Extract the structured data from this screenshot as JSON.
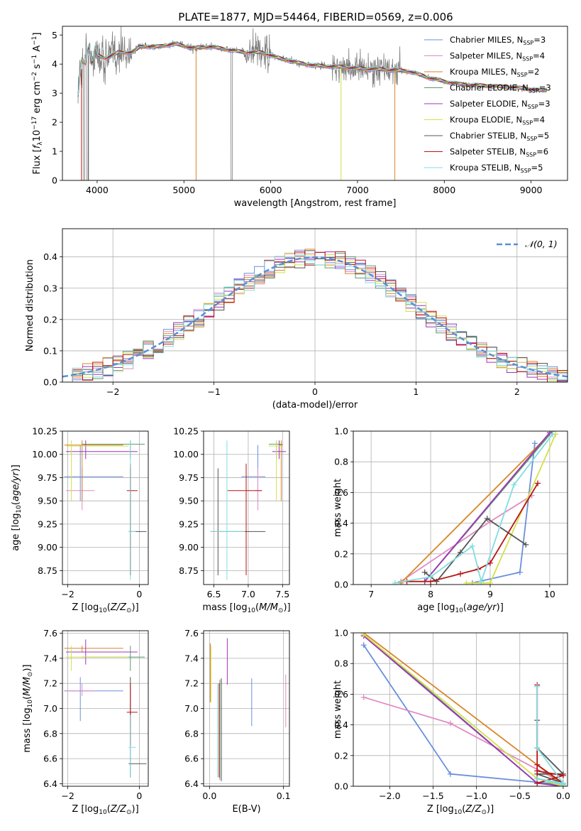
{
  "figure_title": "PLATE=1877, MJD=54464, FIBERID=0569, z=0.006",
  "colors": {
    "Chabrier MILES": "#6a8fdc",
    "Salpeter MILES": "#e28bc3",
    "Kroupa MILES": "#d9862a",
    "Chabrier ELODIE": "#5b9a70",
    "Salpeter ELODIE": "#a035b8",
    "Kroupa ELODIE": "#d4e04a",
    "Chabrier STELIB": "#555555",
    "Salpeter STELIB": "#b81414",
    "Kroupa STELIB": "#80dde0",
    "data": "#7f7f7f",
    "normal": "#5b8fd6"
  },
  "chart_data": [
    {
      "id": "spectrum",
      "type": "line",
      "xlabel": "wavelength [Angstrom, rest frame]",
      "ylabel": "Flux [f_λ 10^-17 erg cm^-2 s^-1 A^-1]",
      "xlim": [
        3600,
        9420
      ],
      "ylim": [
        0,
        5.3
      ],
      "xticks": [
        4000,
        5000,
        6000,
        7000,
        8000,
        9000
      ],
      "yticks": [
        0,
        1,
        2,
        3,
        4,
        5
      ],
      "legend_position": "upper right",
      "legend": [
        {
          "name": "Chabrier MILES",
          "nssp": "3"
        },
        {
          "name": "Salpeter MILES",
          "nssp": "4"
        },
        {
          "name": "Kroupa MILES",
          "nssp": "2"
        },
        {
          "name": "Chabrier ELODIE",
          "nssp": "3"
        },
        {
          "name": "Salpeter ELODIE",
          "nssp": "3"
        },
        {
          "name": "Kroupa ELODIE",
          "nssp": "4"
        },
        {
          "name": "Chabrier STELIB",
          "nssp": "5"
        },
        {
          "name": "Salpeter STELIB",
          "nssp": "6"
        },
        {
          "name": "Kroupa STELIB",
          "nssp": "5"
        }
      ],
      "continuum": [
        [
          3780,
          3.2
        ],
        [
          3850,
          4.3
        ],
        [
          4000,
          4.3
        ],
        [
          4100,
          4.2
        ],
        [
          4250,
          4.4
        ],
        [
          4400,
          4.4
        ],
        [
          4500,
          4.6
        ],
        [
          4700,
          4.6
        ],
        [
          4900,
          4.7
        ],
        [
          5100,
          4.55
        ],
        [
          5300,
          4.6
        ],
        [
          5500,
          4.5
        ],
        [
          5700,
          4.4
        ],
        [
          5900,
          4.4
        ],
        [
          6100,
          4.2
        ],
        [
          6300,
          4.05
        ],
        [
          6500,
          3.95
        ],
        [
          6800,
          3.9
        ],
        [
          7000,
          3.85
        ],
        [
          7400,
          3.8
        ],
        [
          7600,
          3.75
        ],
        [
          7800,
          3.55
        ],
        [
          8000,
          3.4
        ],
        [
          8200,
          3.3
        ],
        [
          8500,
          3.25
        ],
        [
          8800,
          3.2
        ],
        [
          9100,
          3.1
        ]
      ]
    },
    {
      "id": "residuals",
      "type": "bar",
      "xlabel": "(data-model)/error",
      "ylabel": "Normed distribution",
      "xlim": [
        -2.5,
        2.5
      ],
      "ylim": [
        0,
        0.49
      ],
      "xticks": [
        -2,
        -1,
        0,
        1,
        2
      ],
      "yticks": [
        0.0,
        0.1,
        0.2,
        0.3,
        0.4
      ],
      "legend": "𝒩(0, 1)",
      "bin_width": 0.1
    },
    {
      "id": "age-vs-Z",
      "type": "scatter",
      "xlabel": "Z [log10(Z/Z⊙)]",
      "ylabel": "age [log10(age/yr)]",
      "xlim": [
        -2.15,
        0.25
      ],
      "ylim": [
        8.6,
        10.25
      ],
      "xticks": [
        -2,
        0
      ],
      "yticks": [
        8.75,
        9.0,
        9.25,
        9.5,
        9.75,
        10.0,
        10.25
      ]
    },
    {
      "id": "age-vs-mass",
      "type": "scatter",
      "xlabel": "mass [log10(M/M⊙)]",
      "xlim": [
        6.35,
        7.6
      ],
      "ylim": [
        8.6,
        10.25
      ],
      "xticks": [
        6.5,
        7.0,
        7.5
      ],
      "yticks": [
        8.75,
        9.0,
        9.25,
        9.5,
        9.75,
        10.0,
        10.25
      ]
    },
    {
      "id": "mass-weight-vs-age",
      "type": "line",
      "xlabel": "age [log10(age/yr)]",
      "ylabel": "mass weight",
      "xlim": [
        6.7,
        10.3
      ],
      "ylim": [
        0,
        1
      ],
      "xticks": [
        7,
        8,
        9,
        10
      ],
      "yticks": [
        0.0,
        0.2,
        0.4,
        0.6,
        0.8,
        1.0
      ],
      "series": [
        {
          "name": "Chabrier MILES",
          "points": [
            [
              8.7,
              0.01
            ],
            [
              9.5,
              0.08
            ],
            [
              9.75,
              0.92
            ]
          ]
        },
        {
          "name": "Salpeter MILES",
          "points": [
            [
              7.5,
              0.02
            ],
            [
              9.0,
              0.41
            ],
            [
              9.7,
              0.58
            ]
          ]
        },
        {
          "name": "Kroupa MILES",
          "points": [
            [
              7.5,
              0.01
            ],
            [
              10.05,
              1.0
            ]
          ]
        },
        {
          "name": "Chabrier ELODIE",
          "points": [
            [
              7.9,
              0.02
            ],
            [
              10.05,
              1.0
            ]
          ]
        },
        {
          "name": "Salpeter ELODIE",
          "points": [
            [
              7.9,
              0.02
            ],
            [
              10.0,
              0.99
            ]
          ]
        },
        {
          "name": "Kroupa ELODIE",
          "points": [
            [
              8.6,
              0.01
            ],
            [
              9.0,
              0.01
            ],
            [
              10.1,
              0.98
            ]
          ]
        },
        {
          "name": "Chabrier STELIB",
          "points": [
            [
              7.9,
              0.08
            ],
            [
              8.1,
              0.02
            ],
            [
              8.5,
              0.21
            ],
            [
              8.95,
              0.43
            ],
            [
              9.6,
              0.26
            ]
          ]
        },
        {
          "name": "Salpeter STELIB",
          "points": [
            [
              7.6,
              0.02
            ],
            [
              8.0,
              0.02
            ],
            [
              8.5,
              0.07
            ],
            [
              8.8,
              0.1
            ],
            [
              9.0,
              0.14
            ],
            [
              9.8,
              0.66
            ]
          ]
        },
        {
          "name": "Kroupa STELIB",
          "points": [
            [
              7.4,
              0.01
            ],
            [
              8.0,
              0.05
            ],
            [
              8.7,
              0.25
            ],
            [
              8.85,
              0.02
            ],
            [
              9.4,
              0.65
            ],
            [
              10.05,
              0.98
            ]
          ]
        }
      ]
    },
    {
      "id": "mass-vs-Z",
      "type": "scatter",
      "xlabel": "Z [log10(Z/Z⊙)]",
      "ylabel": "mass [log10(M/M⊙)]",
      "xlim": [
        -2.15,
        0.25
      ],
      "ylim": [
        6.38,
        7.62
      ],
      "xticks": [
        -2,
        0
      ],
      "yticks": [
        6.4,
        6.6,
        6.8,
        7.0,
        7.2,
        7.4,
        7.6
      ]
    },
    {
      "id": "mass-vs-ebv",
      "type": "scatter",
      "xlabel": "E(B-V)",
      "xlim": [
        -0.008,
        0.108
      ],
      "ylim": [
        6.38,
        7.62
      ],
      "xticks": [
        0.0,
        0.1
      ],
      "yticks": [
        6.4,
        6.6,
        6.8,
        7.0,
        7.2,
        7.4,
        7.6
      ],
      "points": [
        {
          "name": "Chabrier MILES",
          "x": 0.057,
          "ylo": 6.86,
          "yhi": 7.24
        },
        {
          "name": "Salpeter MILES",
          "x": 0.103,
          "ylo": 6.85,
          "yhi": 7.27
        },
        {
          "name": "Kroupa MILES",
          "x": 0.001,
          "ylo": 7.05,
          "yhi": 7.52
        },
        {
          "name": "Chabrier ELODIE",
          "x": 0.014,
          "ylo": 6.43,
          "yhi": 7.23
        },
        {
          "name": "Salpeter ELODIE",
          "x": 0.024,
          "ylo": 7.19,
          "yhi": 7.56
        },
        {
          "name": "Kroupa ELODIE",
          "x": 0.002,
          "ylo": 7.05,
          "yhi": 7.5
        },
        {
          "name": "Chabrier STELIB",
          "x": 0.016,
          "ylo": 6.42,
          "yhi": 7.24
        },
        {
          "name": "Salpeter STELIB",
          "x": 0.013,
          "ylo": 6.45,
          "yhi": 7.2
        },
        {
          "name": "Kroupa STELIB",
          "x": 0.011,
          "ylo": 6.45,
          "yhi": 7.2
        }
      ]
    },
    {
      "id": "mass-weight-vs-Z",
      "type": "line",
      "xlabel": "Z [log10(Z/Z⊙)]",
      "ylabel": "mass weight",
      "xlim": [
        -2.42,
        0.05
      ],
      "ylim": [
        0,
        1
      ],
      "xticks": [
        -2.0,
        -1.5,
        -1.0,
        -0.5,
        0.0
      ],
      "yticks": [
        0.0,
        0.2,
        0.4,
        0.6,
        0.8,
        1.0
      ],
      "series": [
        {
          "name": "Chabrier MILES",
          "points": [
            [
              -2.3,
              0.92
            ],
            [
              -1.3,
              0.08
            ],
            [
              0.0,
              0.01
            ]
          ]
        },
        {
          "name": "Salpeter MILES",
          "points": [
            [
              -2.3,
              0.58
            ],
            [
              -1.3,
              0.41
            ],
            [
              0.0,
              0.02
            ]
          ]
        },
        {
          "name": "Kroupa MILES",
          "points": [
            [
              -2.3,
              1.0
            ],
            [
              0.0,
              0.01
            ]
          ]
        },
        {
          "name": "Chabrier ELODIE",
          "points": [
            [
              -2.3,
              0.99
            ],
            [
              -0.3,
              0.02
            ],
            [
              0.0,
              0.01
            ]
          ]
        },
        {
          "name": "Salpeter ELODIE",
          "points": [
            [
              -2.3,
              0.98
            ],
            [
              -0.3,
              0.02
            ],
            [
              0.0,
              0.0
            ]
          ]
        },
        {
          "name": "Kroupa ELODIE",
          "points": [
            [
              -2.3,
              0.99
            ],
            [
              -0.3,
              0.05
            ],
            [
              0.0,
              0.0
            ]
          ]
        },
        {
          "name": "Chabrier STELIB",
          "points": [
            [
              -0.3,
              0.43
            ],
            [
              -0.3,
              0.25
            ],
            [
              0.0,
              0.08
            ],
            [
              -0.3,
              0.08
            ],
            [
              0.0,
              0.02
            ]
          ]
        },
        {
          "name": "Salpeter STELIB",
          "points": [
            [
              -0.3,
              0.66
            ],
            [
              -0.3,
              0.02
            ],
            [
              0.0,
              0.07
            ],
            [
              -0.3,
              0.1
            ],
            [
              -0.3,
              0.14
            ],
            [
              0.0,
              0.02
            ]
          ]
        },
        {
          "name": "Kroupa STELIB",
          "points": [
            [
              -0.3,
              0.65
            ],
            [
              -0.3,
              0.25
            ],
            [
              0.0,
              0.02
            ],
            [
              -0.3,
              0.05
            ],
            [
              0.0,
              0.01
            ]
          ]
        }
      ]
    }
  ]
}
